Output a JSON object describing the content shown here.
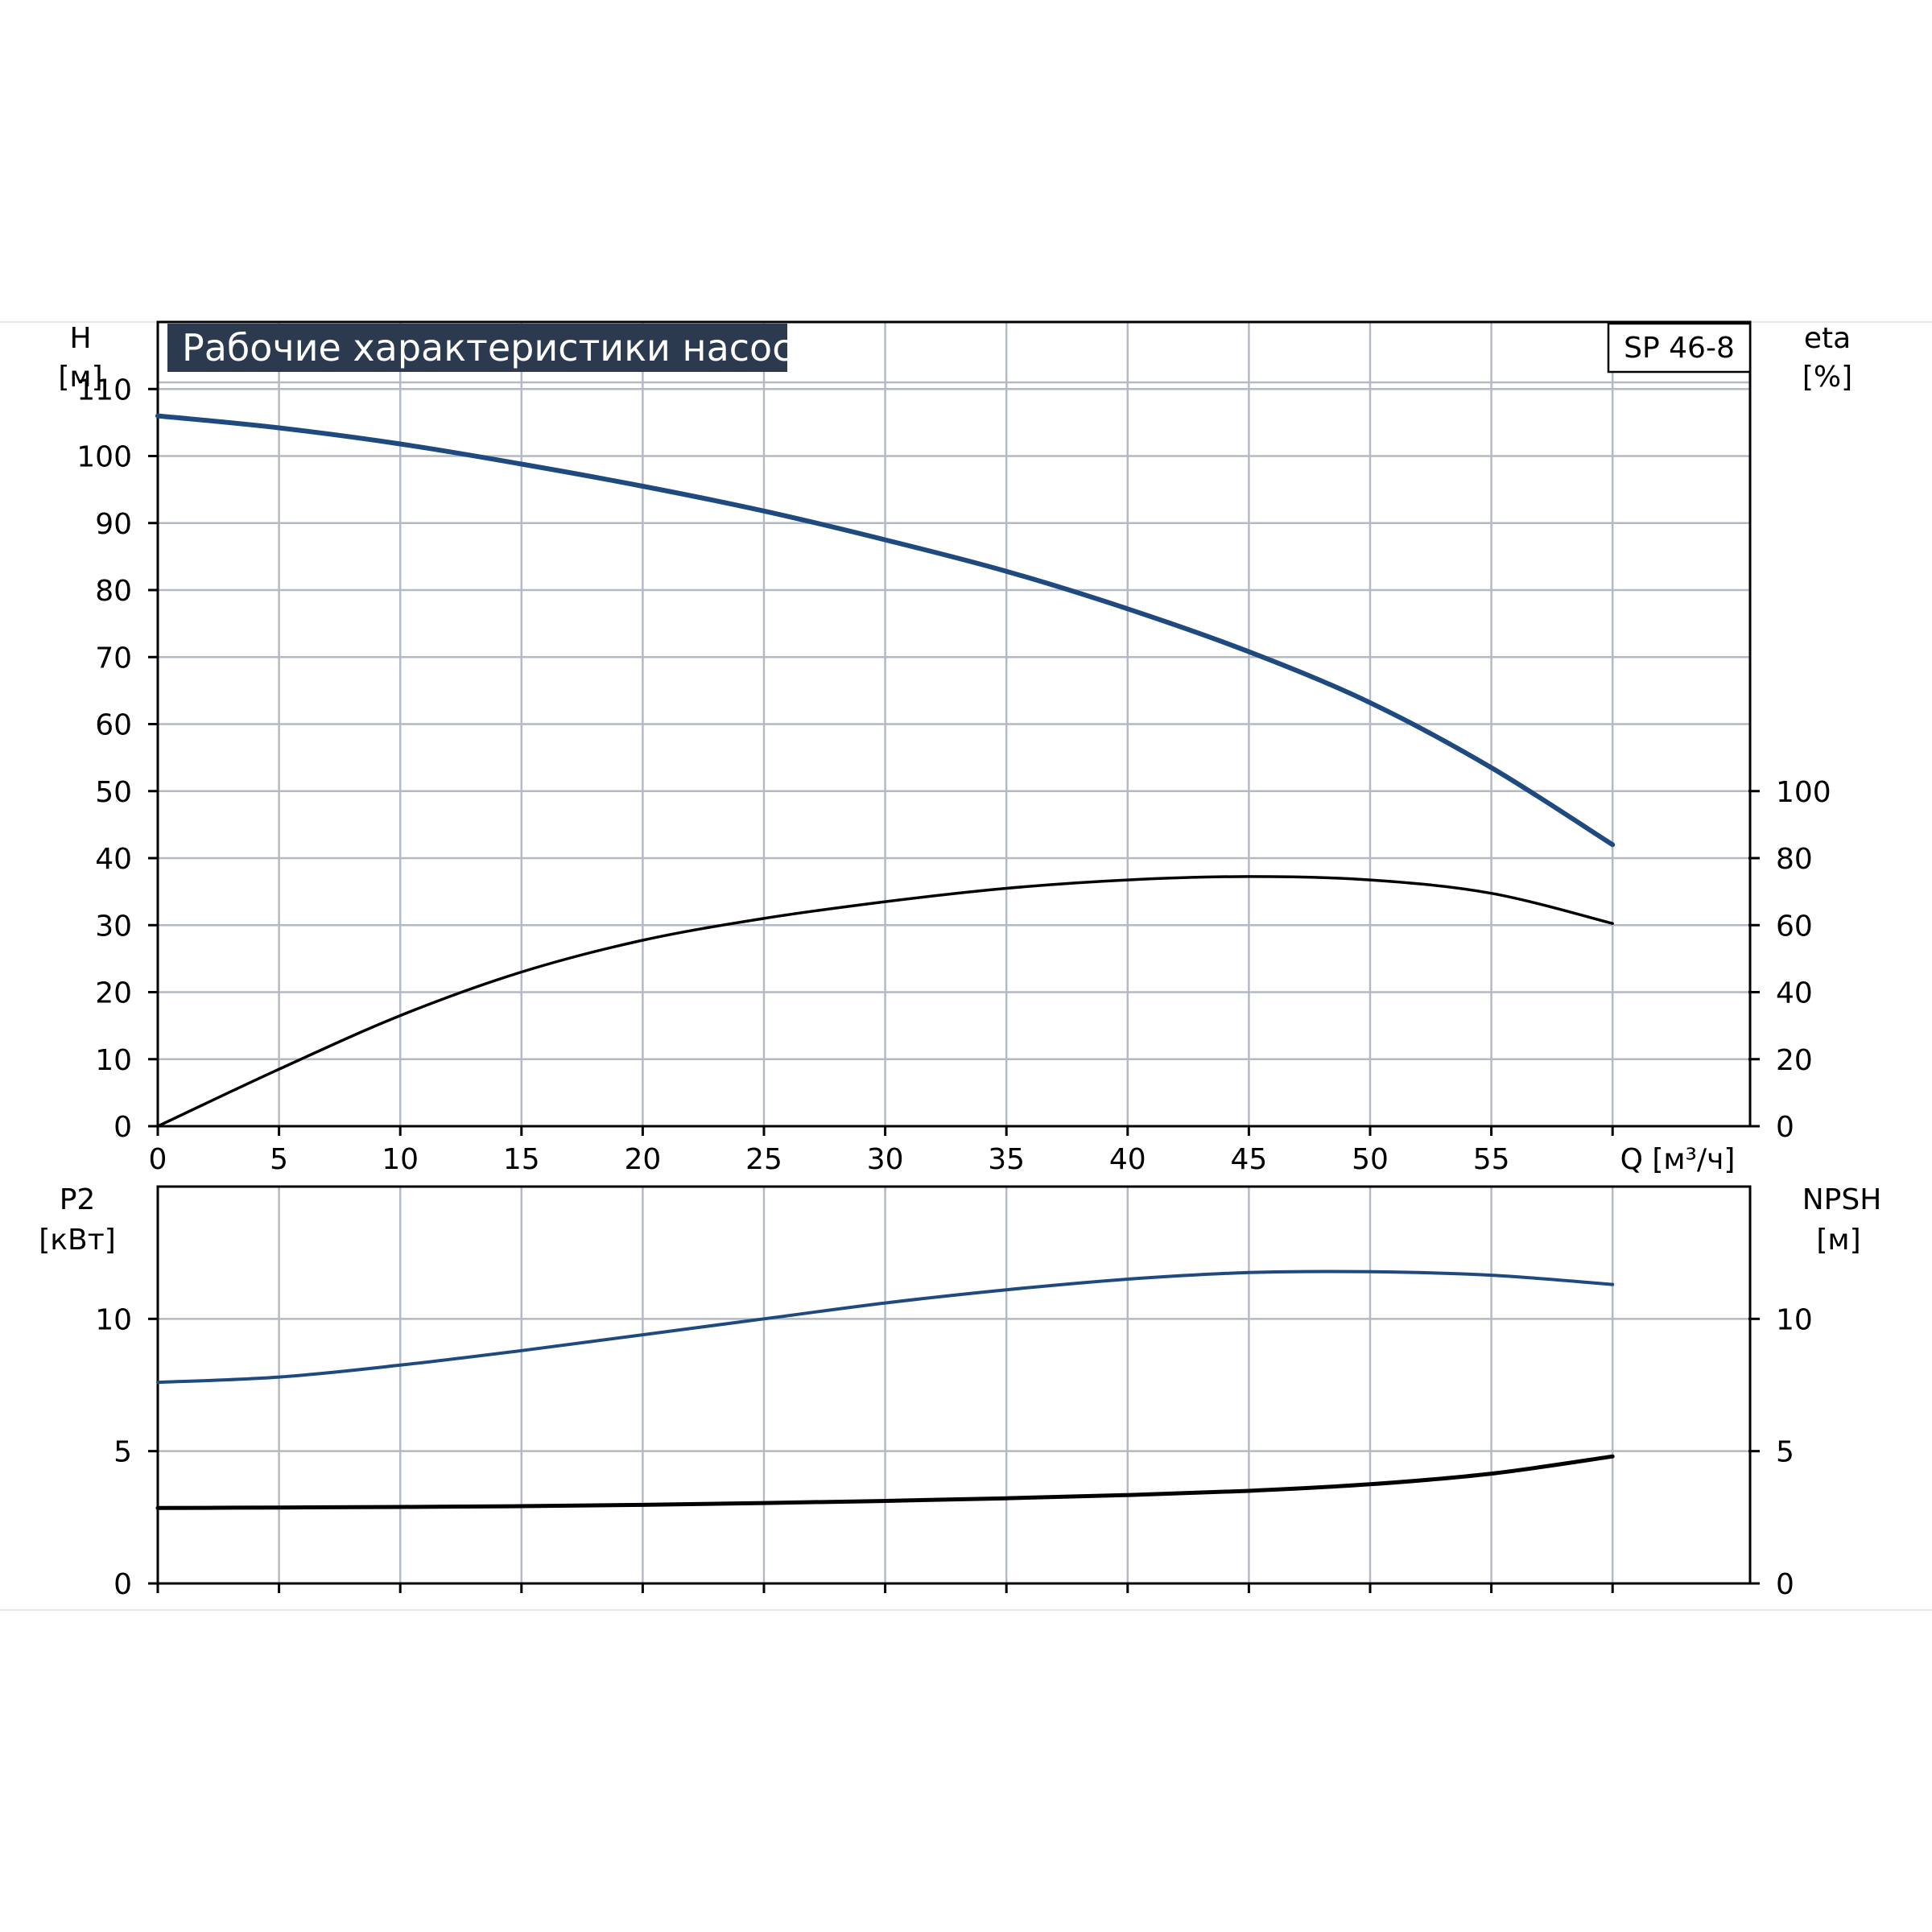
{
  "title": "Рабочие характеристики насоса",
  "model": "SP 46-8",
  "colors": {
    "grid": "#b4b9c6",
    "title_bg": "#2b3a4e",
    "series_blue": "#1f4a7f",
    "series_black": "#000000"
  },
  "chart_data": [
    {
      "type": "line",
      "name": "top-panel",
      "xlabel": "Q [м³/ч]",
      "x_ticks": [
        0,
        5,
        10,
        15,
        20,
        25,
        30,
        35,
        40,
        45,
        50,
        55
      ],
      "xlim": [
        0,
        65
      ],
      "grid": true,
      "y_left": {
        "label_line1": "H",
        "label_line2": "[м]",
        "ticks": [
          0,
          10,
          20,
          30,
          40,
          50,
          60,
          70,
          80,
          90,
          100,
          110
        ],
        "ylim": [
          0,
          120
        ]
      },
      "y_right": {
        "label_line1": "eta",
        "label_line2": "[%]",
        "ticks": [
          0,
          20,
          40,
          60,
          80,
          100
        ],
        "ylim": [
          0,
          240
        ]
      },
      "series": [
        {
          "axis": "left",
          "color": "#1f4a7f",
          "x": [
            0,
            5,
            10,
            15,
            20,
            25,
            30,
            35,
            40,
            45,
            50,
            55,
            60
          ],
          "y": [
            106,
            104.2,
            101.8,
            98.8,
            95.5,
            91.8,
            87.5,
            82.8,
            77.2,
            70.8,
            63.2,
            53.5,
            42
          ]
        },
        {
          "axis": "right",
          "color": "#000000",
          "x": [
            0,
            5,
            10,
            15,
            20,
            25,
            30,
            35,
            40,
            45,
            50,
            55,
            60
          ],
          "y": [
            0,
            17,
            33,
            46,
            55.5,
            62,
            67,
            71,
            73.5,
            74.5,
            73.5,
            69.5,
            60.5
          ]
        }
      ]
    },
    {
      "type": "line",
      "name": "bottom-panel",
      "x_ticks": [
        0,
        5,
        10,
        15,
        20,
        25,
        30,
        35,
        40,
        45,
        50,
        55
      ],
      "xlim": [
        0,
        65
      ],
      "grid": true,
      "y_left": {
        "label_line1": "P2",
        "label_line2": "[кВт]",
        "ticks": [
          0,
          5,
          10
        ],
        "ylim": [
          0,
          15
        ]
      },
      "y_right": {
        "label_line1": "NPSH",
        "label_line2": "[м]",
        "ticks": [
          0,
          5,
          10
        ],
        "ylim": [
          0,
          15
        ]
      },
      "series": [
        {
          "axis": "left",
          "color": "#1f4a7f",
          "x": [
            0,
            5,
            10,
            15,
            20,
            25,
            30,
            35,
            40,
            45,
            50,
            55,
            60
          ],
          "y": [
            7.6,
            7.8,
            8.25,
            8.8,
            9.4,
            10.0,
            10.6,
            11.1,
            11.5,
            11.75,
            11.78,
            11.65,
            11.3
          ]
        },
        {
          "axis": "right",
          "color": "#000000",
          "x": [
            0,
            5,
            10,
            15,
            20,
            25,
            30,
            35,
            40,
            45,
            50,
            55,
            60
          ],
          "y": [
            2.85,
            2.87,
            2.89,
            2.92,
            2.97,
            3.04,
            3.12,
            3.22,
            3.34,
            3.5,
            3.75,
            4.15,
            4.8
          ]
        }
      ]
    }
  ]
}
